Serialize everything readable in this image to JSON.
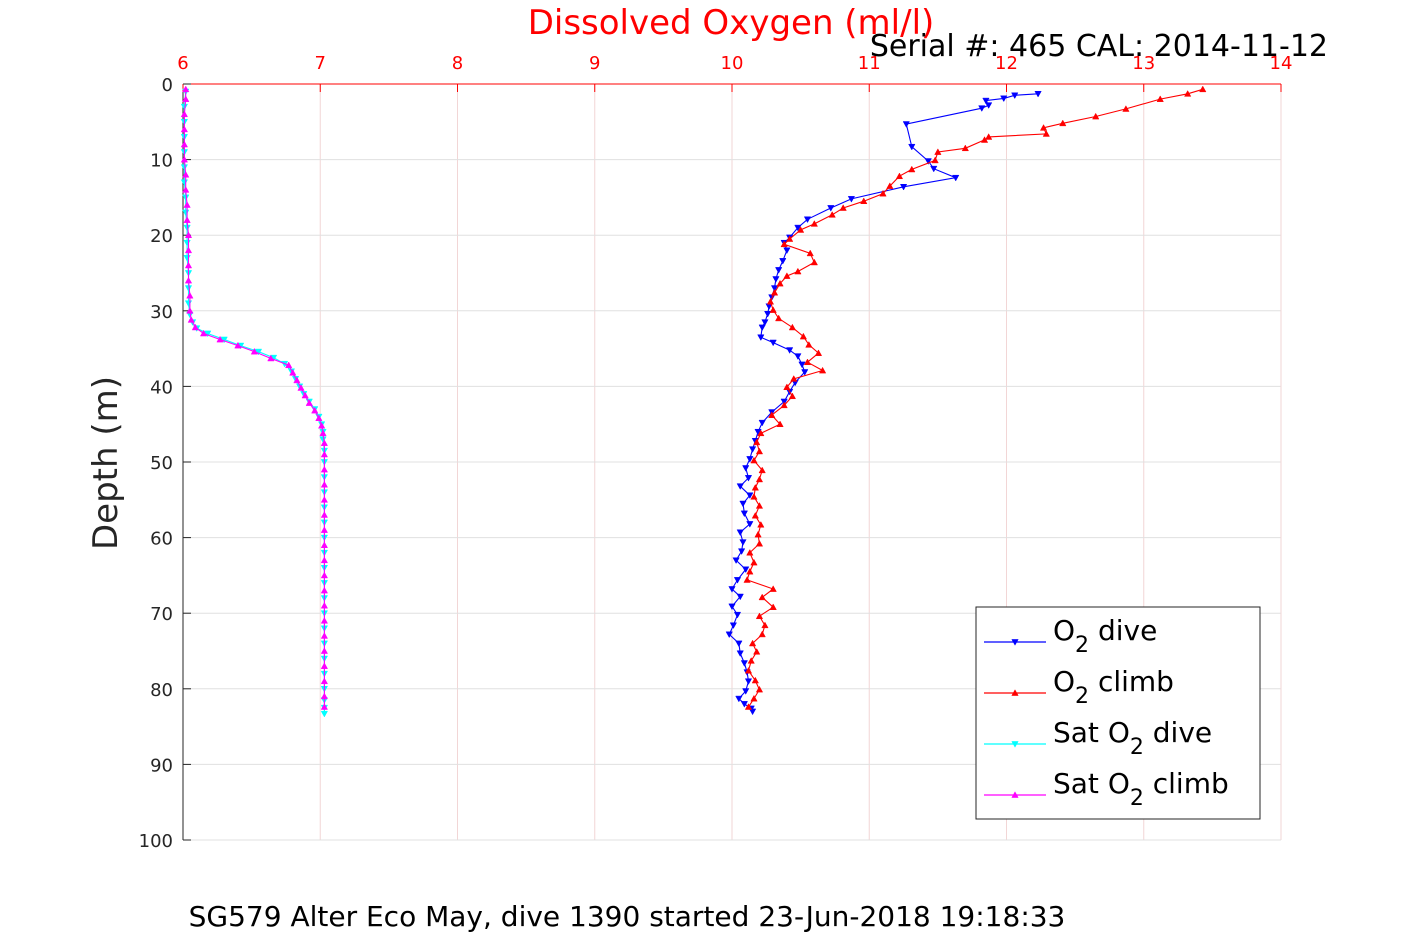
{
  "chart_data": {
    "type": "line",
    "title": "Dissolved Oxygen (ml/l)",
    "subtitle": "Serial #: 465  CAL: 2014-11-12",
    "footer": "SG579 Alter Eco May, dive 1390 started 23-Jun-2018 19:18:33",
    "ylabel": "Depth (m)",
    "xlabel": "",
    "xlim": [
      6,
      14
    ],
    "ylim": [
      0,
      100
    ],
    "y_reversed": true,
    "x_axis_position": "top",
    "grid": true,
    "legend_position": "bottom-right",
    "xticks": [
      6,
      7,
      8,
      9,
      10,
      11,
      12,
      13,
      14
    ],
    "yticks": [
      0,
      10,
      20,
      30,
      40,
      50,
      60,
      70,
      80,
      90,
      100
    ],
    "series": [
      {
        "name": "O2 dive",
        "legend_main": "O",
        "legend_sub": "2",
        "legend_rest": " dive",
        "legend_pre": "",
        "color": "#0000ff",
        "marker": "down",
        "depth": [
          1.3,
          1.5,
          1.9,
          2.2,
          2.8,
          3.2,
          5.3,
          8.3,
          10.2,
          11.2,
          12.4,
          13.6,
          15.2,
          16.4,
          17.9,
          19.0,
          20.3,
          21.0,
          22.0,
          23.4,
          24.6,
          25.8,
          27.0,
          28.2,
          29.4,
          30.4,
          31.5,
          32.2,
          33.5,
          34.2,
          35.2,
          36.0,
          37.1,
          38.1,
          39.5,
          40.7,
          42.0,
          43.4,
          44.8,
          46.0,
          47.2,
          48.3,
          49.6,
          50.8,
          52.1,
          53.2,
          54.4,
          55.5,
          56.8,
          58.2,
          59.3,
          60.6,
          61.8,
          63.0,
          64.2,
          65.6,
          66.8,
          67.8,
          69.1,
          70.2,
          71.6,
          72.8,
          74.0,
          75.3,
          76.6,
          77.8,
          79.0,
          80.3,
          81.3,
          82.0,
          82.6,
          83.0
        ],
        "value": [
          12.23,
          12.06,
          11.98,
          11.85,
          11.87,
          11.82,
          11.27,
          11.31,
          11.43,
          11.47,
          11.63,
          11.25,
          10.87,
          10.72,
          10.55,
          10.48,
          10.42,
          10.38,
          10.4,
          10.37,
          10.34,
          10.32,
          10.31,
          10.29,
          10.27,
          10.26,
          10.24,
          10.22,
          10.21,
          10.3,
          10.42,
          10.48,
          10.51,
          10.53,
          10.46,
          10.42,
          10.38,
          10.29,
          10.22,
          10.19,
          10.17,
          10.15,
          10.13,
          10.1,
          10.12,
          10.06,
          10.13,
          10.08,
          10.09,
          10.13,
          10.06,
          10.08,
          10.07,
          10.03,
          10.1,
          10.04,
          10.0,
          10.06,
          10.0,
          10.04,
          10.01,
          9.98,
          10.05,
          10.06,
          10.09,
          10.11,
          10.12,
          10.1,
          10.05,
          10.09,
          10.14,
          10.15
        ]
      },
      {
        "name": "O2 climb",
        "legend_main": "O",
        "legend_sub": "2",
        "legend_rest": " climb",
        "legend_pre": "",
        "color": "#ff0000",
        "marker": "up",
        "depth": [
          0.7,
          1.3,
          2.0,
          3.3,
          4.3,
          5.2,
          5.8,
          6.6,
          7.0,
          7.4,
          8.5,
          9.0,
          10.1,
          11.3,
          12.2,
          13.5,
          14.5,
          15.5,
          16.4,
          17.3,
          18.5,
          19.3,
          20.5,
          21.2,
          22.4,
          23.6,
          24.8,
          25.4,
          26.4,
          27.6,
          28.8,
          29.9,
          31.0,
          32.2,
          33.4,
          34.5,
          35.6,
          36.8,
          37.9,
          39.0,
          40.1,
          41.3,
          42.5,
          43.8,
          45.0,
          46.2,
          47.4,
          48.6,
          49.8,
          51.1,
          52.3,
          53.4,
          54.6,
          55.8,
          57.1,
          58.3,
          59.6,
          60.8,
          62.0,
          63.3,
          64.5,
          65.6,
          66.8,
          67.9,
          69.2,
          70.4,
          71.6,
          72.8,
          74.0,
          75.1,
          76.3,
          77.6,
          78.9,
          80.1,
          81.3,
          82.4
        ],
        "value": [
          13.43,
          13.32,
          13.12,
          12.87,
          12.65,
          12.41,
          12.27,
          12.29,
          11.87,
          11.84,
          11.7,
          11.5,
          11.48,
          11.31,
          11.22,
          11.15,
          11.1,
          10.96,
          10.81,
          10.73,
          10.6,
          10.5,
          10.42,
          10.38,
          10.57,
          10.6,
          10.48,
          10.4,
          10.35,
          10.31,
          10.28,
          10.3,
          10.34,
          10.44,
          10.52,
          10.56,
          10.63,
          10.55,
          10.66,
          10.45,
          10.4,
          10.44,
          10.38,
          10.29,
          10.35,
          10.21,
          10.18,
          10.2,
          10.16,
          10.22,
          10.2,
          10.17,
          10.16,
          10.2,
          10.17,
          10.21,
          10.19,
          10.2,
          10.13,
          10.16,
          10.13,
          10.11,
          10.3,
          10.22,
          10.3,
          10.2,
          10.24,
          10.22,
          10.15,
          10.18,
          10.14,
          10.12,
          10.17,
          10.2,
          10.16,
          10.12
        ]
      },
      {
        "name": "Sat O2 dive",
        "legend_pre": "Sat ",
        "legend_main": "O",
        "legend_sub": "2",
        "legend_rest": " dive",
        "color": "#00ffff",
        "marker": "down",
        "depth": [
          1.0,
          3.0,
          5.0,
          7.0,
          9.0,
          11.0,
          13.0,
          15.0,
          17.0,
          19.0,
          21.0,
          23.0,
          25.0,
          27.0,
          29.0,
          30.5,
          31.5,
          32.3,
          33.0,
          33.8,
          34.6,
          35.4,
          36.2,
          37.0,
          38.0,
          39.0,
          40.0,
          41.0,
          42.0,
          43.0,
          44.0,
          45.0,
          46.0,
          47.0,
          48.5,
          50.0,
          52.0,
          54.0,
          56.0,
          58.0,
          60.0,
          62.0,
          64.0,
          66.0,
          68.0,
          70.0,
          72.0,
          74.0,
          76.0,
          78.0,
          80.0,
          81.5,
          82.5,
          83.3
        ],
        "value": [
          6.02,
          6.01,
          6.01,
          6.01,
          6.01,
          6.01,
          6.01,
          6.02,
          6.02,
          6.03,
          6.03,
          6.03,
          6.04,
          6.04,
          6.04,
          6.05,
          6.07,
          6.1,
          6.18,
          6.3,
          6.42,
          6.55,
          6.66,
          6.74,
          6.79,
          6.82,
          6.85,
          6.88,
          6.92,
          6.96,
          6.99,
          7.01,
          7.02,
          7.02,
          7.03,
          7.03,
          7.03,
          7.03,
          7.03,
          7.03,
          7.03,
          7.03,
          7.03,
          7.03,
          7.03,
          7.03,
          7.03,
          7.03,
          7.03,
          7.03,
          7.03,
          7.03,
          7.03,
          7.03
        ]
      },
      {
        "name": "Sat O2 climb",
        "legend_pre": "Sat ",
        "legend_main": "O",
        "legend_sub": "2",
        "legend_rest": " climb",
        "color": "#ff00ff",
        "marker": "up",
        "depth": [
          0.7,
          2.0,
          4.0,
          6.0,
          8.0,
          10.0,
          12.0,
          14.0,
          16.0,
          18.0,
          20.0,
          22.0,
          24.0,
          26.0,
          28.0,
          30.0,
          31.2,
          32.2,
          33.0,
          33.8,
          34.6,
          35.4,
          36.3,
          37.2,
          38.2,
          39.2,
          40.2,
          41.2,
          42.2,
          43.2,
          44.2,
          45.2,
          46.2,
          47.5,
          49.0,
          51.0,
          53.0,
          55.0,
          57.0,
          59.0,
          61.0,
          63.0,
          65.0,
          67.0,
          69.0,
          71.0,
          73.0,
          75.0,
          77.0,
          79.0,
          81.0,
          82.4
        ],
        "value": [
          6.02,
          6.02,
          6.01,
          6.01,
          6.01,
          6.01,
          6.02,
          6.02,
          6.03,
          6.03,
          6.04,
          6.04,
          6.04,
          6.04,
          6.05,
          6.05,
          6.06,
          6.09,
          6.15,
          6.27,
          6.4,
          6.52,
          6.64,
          6.77,
          6.8,
          6.83,
          6.86,
          6.89,
          6.92,
          6.96,
          6.99,
          7.01,
          7.02,
          7.03,
          7.03,
          7.03,
          7.03,
          7.03,
          7.03,
          7.03,
          7.03,
          7.03,
          7.03,
          7.03,
          7.03,
          7.03,
          7.03,
          7.03,
          7.03,
          7.03,
          7.03,
          7.03
        ]
      }
    ]
  }
}
